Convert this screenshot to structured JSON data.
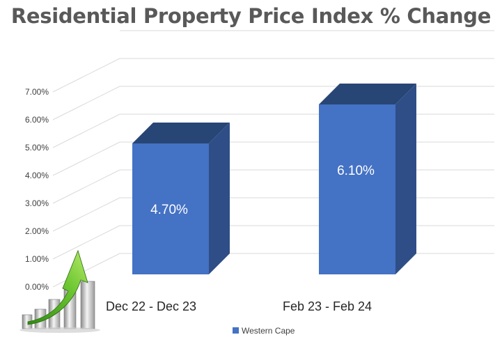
{
  "chart_data": {
    "type": "bar",
    "title": "Residential Property Price Index % Change",
    "categories": [
      "Dec 22 - Dec 23",
      "Feb 23 - Feb 24"
    ],
    "series": [
      {
        "name": "Western Cape",
        "values": [
          4.7,
          6.1
        ],
        "data_labels": [
          "4.70%",
          "6.10%"
        ]
      }
    ],
    "ylim": [
      0,
      7
    ],
    "yticks": [
      "0.00%",
      "1.00%",
      "2.00%",
      "3.00%",
      "4.00%",
      "5.00%",
      "6.00%",
      "7.00%"
    ],
    "xlabel": "",
    "ylabel": "",
    "grid": true,
    "style": "3d-column",
    "legend_position": "bottom",
    "colors": {
      "bar_front": "#4472C4",
      "bar_side": "#2F4E87",
      "bar_top": "#284675",
      "grid": "#D9D9D9"
    }
  },
  "decoration": {
    "icon": "growth-arrow-bars-icon"
  }
}
